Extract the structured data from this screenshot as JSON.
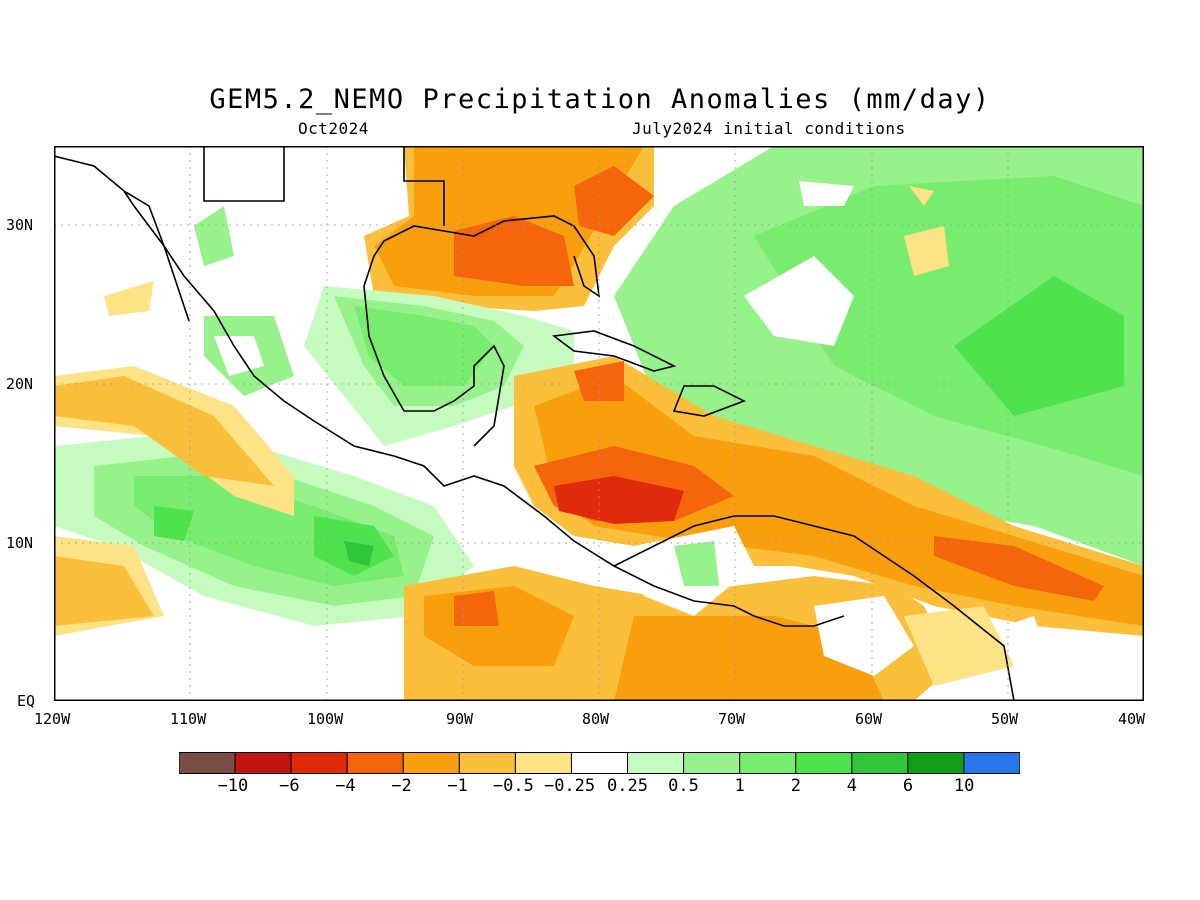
{
  "title": "GEM5.2_NEMO Precipitation Anomalies (mm/day)",
  "subtitle_left": "Oct2024",
  "subtitle_right": "July2024 initial conditions",
  "lat_labels": [
    "30N",
    "20N",
    "10N",
    "EQ"
  ],
  "lon_labels": [
    "120W",
    "110W",
    "100W",
    "90W",
    "80W",
    "70W",
    "60W",
    "50W",
    "40W"
  ],
  "colorbar": {
    "colors": [
      "#7a4e46",
      "#c3150e",
      "#e02a0c",
      "#f5660c",
      "#f99f0e",
      "#fbbf3c",
      "#fde386",
      "#ffffff",
      "#c6fbc0",
      "#97f28c",
      "#78ec6e",
      "#4ee24c",
      "#31c63a",
      "#109e18",
      "#2777eb"
    ],
    "labels": [
      "-10",
      "-6",
      "-4",
      "-2",
      "-1",
      "-0.5",
      "-0.25",
      "0.25",
      "0.5",
      "1",
      "2",
      "4",
      "6",
      "10"
    ]
  }
}
